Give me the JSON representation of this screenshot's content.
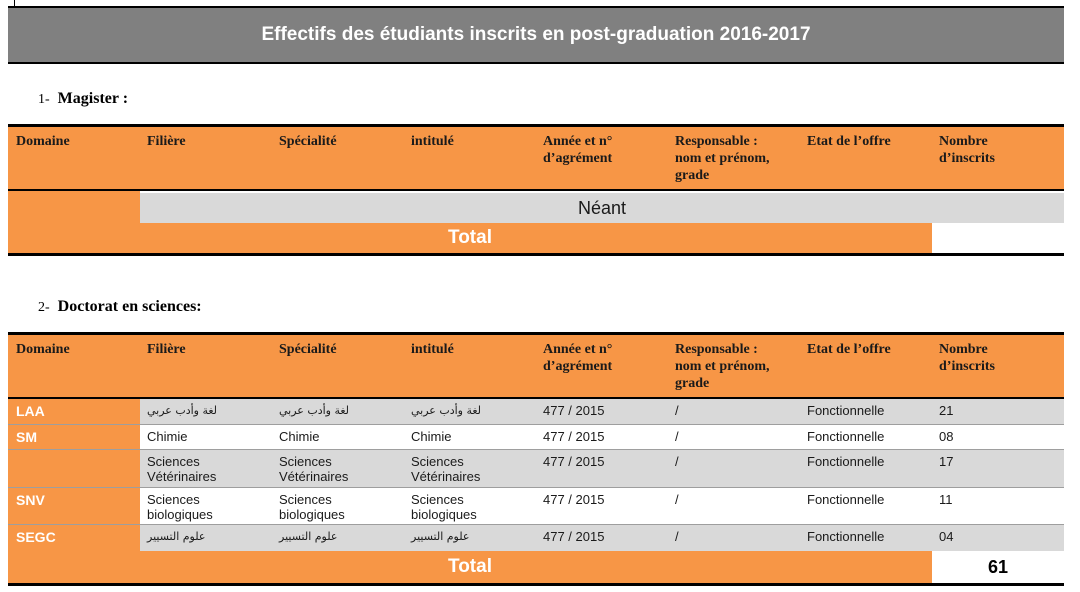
{
  "title": "Effectifs des étudiants inscrits en post-graduation 2016-2017",
  "columns": [
    "Domaine",
    "Filière",
    "Spécialité",
    "intitulé",
    "Année et n°\nd’agrément",
    "Responsable :\nnom et prénom,\ngrade",
    "Etat de l’offre",
    "Nombre\nd’inscrits"
  ],
  "magister": {
    "number": "1-",
    "heading": "Magister :",
    "empty_text": "Néant",
    "total_label": "Total",
    "total_value": ""
  },
  "doctorat": {
    "number": "2-",
    "heading": "Doctorat en sciences:",
    "total_label": "Total",
    "total_value": "61",
    "rows": [
      {
        "domaine": "LAA",
        "filiere": "لغة وأدب عربي",
        "specialite": "لغة وأدب عربي",
        "intitule": "لغة وأدب عربي",
        "annee": "477 / 2015",
        "responsable": "/",
        "etat": "Fonctionnelle",
        "nombre": "21"
      },
      {
        "domaine": "SM",
        "filiere": "Chimie",
        "specialite": "Chimie",
        "intitule": "Chimie",
        "annee": "477 / 2015",
        "responsable": "/",
        "etat": "Fonctionnelle",
        "nombre": "08"
      },
      {
        "domaine": "",
        "filiere": "Sciences\nVétérinaires",
        "specialite": "Sciences\nVétérinaires",
        "intitule": "Sciences\nVétérinaires",
        "annee": "477 / 2015",
        "responsable": "/",
        "etat": "Fonctionnelle",
        "nombre": "17"
      },
      {
        "domaine": "SNV",
        "filiere": "Sciences\nbiologiques",
        "specialite": "Sciences\nbiologiques",
        "intitule": "Sciences\nbiologiques",
        "annee": "477 / 2015",
        "responsable": "/",
        "etat": "Fonctionnelle",
        "nombre": "11"
      },
      {
        "domaine": "SEGC",
        "filiere": "علوم التسيير",
        "specialite": "علوم التسيير",
        "intitule": "علوم التسيير",
        "annee": "477 / 2015",
        "responsable": "/",
        "etat": "Fonctionnelle",
        "nombre": "04"
      }
    ]
  },
  "colors": {
    "header_orange": "#f79646",
    "title_grey": "#808080",
    "row_grey": "#d9d9d9"
  }
}
